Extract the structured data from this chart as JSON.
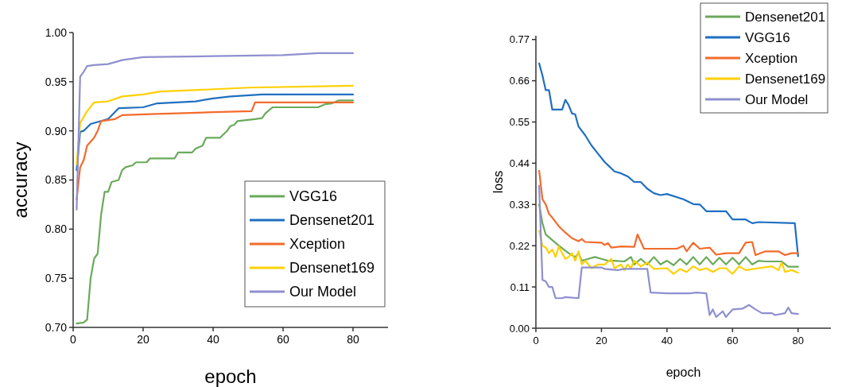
{
  "chart_data": [
    {
      "type": "line",
      "xlabel": "epoch",
      "ylabel": "accuracy",
      "xlim": [
        0,
        90
      ],
      "xticks": [
        0,
        20,
        40,
        60,
        80
      ],
      "ylim": [
        0.7,
        1.0
      ],
      "yticks": [
        {
          "value": 0.7,
          "label": "0.70"
        },
        {
          "value": 0.75,
          "label": "0.75"
        },
        {
          "value": 0.8,
          "label": "0.80"
        },
        {
          "value": 0.85,
          "label": "0.85"
        },
        {
          "value": 0.9,
          "label": "0.90"
        },
        {
          "value": 0.95,
          "label": "0.95"
        },
        {
          "value": 1.0,
          "label": "1.00"
        }
      ],
      "grid": false,
      "legend": "bottom right",
      "line_style": "solid",
      "marker": "none",
      "series": [
        {
          "name": "VGG16",
          "color": "#6aaa5a",
          "x": [
            1,
            3,
            4,
            5,
            6,
            7,
            8,
            9,
            10,
            11,
            13,
            14,
            15,
            17,
            18,
            21,
            22,
            29,
            30,
            34,
            35,
            37,
            38,
            42,
            44,
            45,
            46,
            47,
            52,
            54,
            55,
            57,
            70,
            72,
            74,
            76,
            80
          ],
          "values": [
            0.704,
            0.705,
            0.708,
            0.75,
            0.77,
            0.775,
            0.815,
            0.838,
            0.838,
            0.848,
            0.85,
            0.86,
            0.863,
            0.865,
            0.868,
            0.868,
            0.872,
            0.872,
            0.878,
            0.878,
            0.882,
            0.885,
            0.893,
            0.893,
            0.9,
            0.905,
            0.906,
            0.91,
            0.912,
            0.913,
            0.918,
            0.924,
            0.924,
            0.927,
            0.928,
            0.931,
            0.931
          ]
        },
        {
          "name": "Densenet201",
          "color": "#1f6fc0",
          "x": [
            1,
            2,
            3,
            5,
            8,
            10,
            13,
            20,
            24,
            35,
            40,
            45,
            54,
            80
          ],
          "values": [
            0.86,
            0.899,
            0.9,
            0.907,
            0.91,
            0.912,
            0.923,
            0.924,
            0.928,
            0.93,
            0.933,
            0.935,
            0.937,
            0.937
          ]
        },
        {
          "name": "Xception",
          "color": "#f26b2b",
          "x": [
            1,
            2,
            3,
            4,
            6,
            7,
            8,
            12,
            14,
            22,
            40,
            51,
            52,
            80
          ],
          "values": [
            0.83,
            0.863,
            0.87,
            0.885,
            0.893,
            0.9,
            0.91,
            0.912,
            0.916,
            0.917,
            0.919,
            0.92,
            0.929,
            0.929
          ]
        },
        {
          "name": "Densenet169",
          "color": "#ffd000",
          "x": [
            1,
            2,
            4,
            6,
            10,
            14,
            20,
            25,
            38,
            50,
            80
          ],
          "values": [
            0.866,
            0.908,
            0.92,
            0.929,
            0.93,
            0.935,
            0.937,
            0.94,
            0.942,
            0.944,
            0.946
          ]
        },
        {
          "name": "Our Model",
          "color": "#8f8fd0",
          "x": [
            1,
            2,
            3,
            4,
            6,
            10,
            14,
            18,
            20,
            40,
            60,
            70,
            80
          ],
          "values": [
            0.82,
            0.955,
            0.96,
            0.966,
            0.967,
            0.968,
            0.972,
            0.974,
            0.975,
            0.976,
            0.977,
            0.979,
            0.979
          ]
        }
      ]
    },
    {
      "type": "line",
      "xlabel": "epoch",
      "ylabel": "loss",
      "xlim": [
        0,
        90
      ],
      "xticks": [
        0,
        20,
        40,
        60,
        80
      ],
      "ylim": [
        0,
        0.78
      ],
      "yticks": [
        {
          "value": 0,
          "label": "0.00"
        },
        {
          "value": 0.11,
          "label": "0.11"
        },
        {
          "value": 0.22,
          "label": "0.22"
        },
        {
          "value": 0.33,
          "label": "0.33"
        },
        {
          "value": 0.44,
          "label": "0.44"
        },
        {
          "value": 0.55,
          "label": "0.55"
        },
        {
          "value": 0.66,
          "label": "0.66"
        },
        {
          "value": 0.77,
          "label": "0.77"
        }
      ],
      "grid": false,
      "legend": "top right",
      "line_style": "solid",
      "marker": "none",
      "series": [
        {
          "name": "Densenet201",
          "color": "#6aaa5a",
          "x": [
            1,
            2,
            3,
            5,
            7,
            10,
            12,
            13,
            14,
            16,
            18,
            20,
            22,
            24,
            27,
            29,
            30,
            32,
            34,
            36,
            38,
            40,
            42,
            44,
            46,
            48,
            50,
            52,
            54,
            56,
            58,
            60,
            62,
            64,
            66,
            68,
            70,
            75,
            77,
            80
          ],
          "values": [
            0.33,
            0.28,
            0.25,
            0.235,
            0.22,
            0.2,
            0.19,
            0.2,
            0.18,
            0.185,
            0.19,
            0.185,
            0.18,
            0.18,
            0.178,
            0.19,
            0.17,
            0.185,
            0.17,
            0.19,
            0.17,
            0.18,
            0.168,
            0.185,
            0.17,
            0.19,
            0.17,
            0.19,
            0.17,
            0.188,
            0.17,
            0.188,
            0.17,
            0.19,
            0.17,
            0.18,
            0.178,
            0.178,
            0.164,
            0.164
          ]
        },
        {
          "name": "VGG16",
          "color": "#1f6fc0",
          "x": [
            1,
            2,
            3,
            4,
            5,
            8,
            9,
            10,
            11,
            12,
            13,
            15,
            17,
            19,
            21,
            24,
            26,
            28,
            30,
            32,
            34,
            36,
            38,
            40,
            45,
            48,
            50,
            52,
            58,
            60,
            64,
            66,
            68,
            79,
            80
          ],
          "values": [
            0.706,
            0.674,
            0.635,
            0.635,
            0.583,
            0.583,
            0.609,
            0.595,
            0.573,
            0.57,
            0.538,
            0.515,
            0.487,
            0.465,
            0.443,
            0.418,
            0.413,
            0.405,
            0.39,
            0.39,
            0.372,
            0.36,
            0.355,
            0.358,
            0.344,
            0.331,
            0.33,
            0.312,
            0.312,
            0.29,
            0.29,
            0.28,
            0.283,
            0.28,
            0.192
          ]
        },
        {
          "name": "Xception",
          "color": "#f26b2b",
          "x": [
            1,
            2,
            3,
            4,
            5,
            7,
            9,
            11,
            13,
            14,
            15,
            20,
            21,
            22,
            23,
            26,
            30,
            31,
            33,
            43,
            45,
            46,
            48,
            50,
            53,
            55,
            58,
            62,
            64,
            66,
            67,
            70,
            74,
            76,
            78,
            80
          ],
          "values": [
            0.42,
            0.344,
            0.33,
            0.305,
            0.295,
            0.272,
            0.255,
            0.24,
            0.232,
            0.238,
            0.23,
            0.228,
            0.222,
            0.227,
            0.215,
            0.218,
            0.217,
            0.25,
            0.212,
            0.212,
            0.22,
            0.205,
            0.228,
            0.212,
            0.215,
            0.196,
            0.2,
            0.2,
            0.228,
            0.23,
            0.195,
            0.205,
            0.205,
            0.195,
            0.2,
            0.2
          ]
        },
        {
          "name": "Densenet169",
          "color": "#ffd000",
          "x": [
            1,
            2,
            3,
            4,
            5,
            6,
            7,
            8,
            9,
            10,
            11,
            12,
            13,
            14,
            15,
            17,
            19,
            21,
            23,
            24,
            26,
            27,
            28,
            29,
            30,
            32,
            34,
            36,
            40,
            42,
            44,
            46,
            48,
            50,
            52,
            54,
            56,
            58,
            60,
            62,
            64,
            68,
            72,
            74,
            75,
            76,
            78,
            80
          ],
          "values": [
            0.26,
            0.22,
            0.215,
            0.2,
            0.21,
            0.19,
            0.218,
            0.2,
            0.185,
            0.19,
            0.2,
            0.18,
            0.205,
            0.17,
            0.18,
            0.16,
            0.17,
            0.17,
            0.185,
            0.16,
            0.17,
            0.155,
            0.17,
            0.16,
            0.18,
            0.165,
            0.175,
            0.158,
            0.16,
            0.145,
            0.158,
            0.15,
            0.165,
            0.155,
            0.16,
            0.15,
            0.16,
            0.16,
            0.145,
            0.165,
            0.155,
            0.16,
            0.165,
            0.155,
            0.175,
            0.15,
            0.155,
            0.148
          ]
        },
        {
          "name": "Our Model",
          "color": "#8f8fd0",
          "x": [
            1,
            2,
            3,
            4,
            5,
            6,
            8,
            9,
            13,
            14,
            20,
            21,
            25,
            27,
            34,
            35,
            40,
            47,
            49,
            52,
            53,
            54,
            55,
            57,
            58,
            60,
            63,
            65,
            67,
            69,
            72,
            73,
            76,
            77,
            78,
            80
          ],
          "values": [
            0.38,
            0.129,
            0.125,
            0.11,
            0.11,
            0.08,
            0.08,
            0.083,
            0.08,
            0.162,
            0.162,
            0.158,
            0.155,
            0.158,
            0.158,
            0.095,
            0.093,
            0.093,
            0.095,
            0.093,
            0.035,
            0.05,
            0.03,
            0.045,
            0.03,
            0.05,
            0.052,
            0.062,
            0.05,
            0.04,
            0.04,
            0.035,
            0.04,
            0.055,
            0.04,
            0.038
          ]
        }
      ]
    }
  ]
}
